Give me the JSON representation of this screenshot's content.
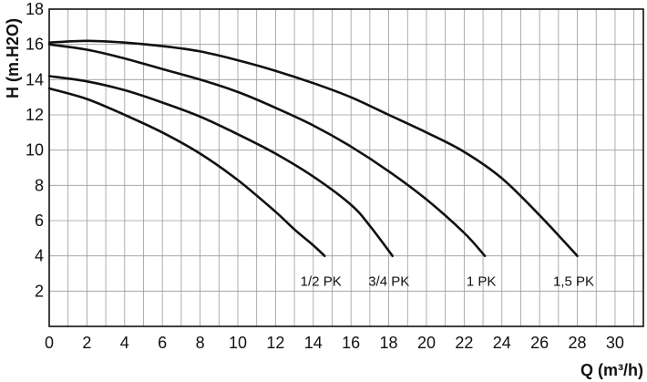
{
  "chart_data": {
    "type": "line",
    "title": "",
    "xlabel": "Q (m³/h)",
    "ylabel": "H (m.H2O)",
    "xlim": [
      0,
      31.5
    ],
    "ylim": [
      0,
      18
    ],
    "xticks": [
      0,
      2,
      4,
      6,
      8,
      10,
      12,
      14,
      16,
      18,
      20,
      22,
      24,
      26,
      28,
      30
    ],
    "yticks": [
      2,
      4,
      6,
      8,
      10,
      12,
      14,
      16,
      18
    ],
    "y_origin_label": "0",
    "grid": true,
    "legend": "none",
    "line_color": "#111111",
    "series": [
      {
        "name": "1/2 PK",
        "points": [
          [
            0,
            13.5
          ],
          [
            2,
            12.9
          ],
          [
            4,
            12.0
          ],
          [
            6,
            11.0
          ],
          [
            8,
            9.8
          ],
          [
            10,
            8.3
          ],
          [
            12,
            6.5
          ],
          [
            13,
            5.5
          ],
          [
            14,
            4.6
          ],
          [
            14.6,
            4.0
          ]
        ]
      },
      {
        "name": "3/4 PK",
        "points": [
          [
            0,
            14.2
          ],
          [
            2,
            13.9
          ],
          [
            4,
            13.4
          ],
          [
            6,
            12.7
          ],
          [
            8,
            11.9
          ],
          [
            10,
            10.9
          ],
          [
            12,
            9.8
          ],
          [
            14,
            8.5
          ],
          [
            16,
            6.9
          ],
          [
            17,
            5.7
          ],
          [
            18.2,
            4.0
          ]
        ]
      },
      {
        "name": "1 PK",
        "points": [
          [
            0,
            16.0
          ],
          [
            2,
            15.7
          ],
          [
            4,
            15.2
          ],
          [
            6,
            14.6
          ],
          [
            8,
            14.0
          ],
          [
            10,
            13.3
          ],
          [
            12,
            12.4
          ],
          [
            14,
            11.4
          ],
          [
            16,
            10.2
          ],
          [
            18,
            8.8
          ],
          [
            20,
            7.2
          ],
          [
            22,
            5.3
          ],
          [
            23.1,
            4.0
          ]
        ]
      },
      {
        "name": "1,5 PK",
        "points": [
          [
            0,
            16.1
          ],
          [
            2,
            16.2
          ],
          [
            4,
            16.1
          ],
          [
            6,
            15.9
          ],
          [
            8,
            15.6
          ],
          [
            10,
            15.1
          ],
          [
            12,
            14.5
          ],
          [
            14,
            13.8
          ],
          [
            16,
            13.0
          ],
          [
            18,
            12.0
          ],
          [
            20,
            11.0
          ],
          [
            22,
            9.9
          ],
          [
            24,
            8.4
          ],
          [
            26,
            6.3
          ],
          [
            28,
            4.0
          ]
        ]
      }
    ]
  }
}
